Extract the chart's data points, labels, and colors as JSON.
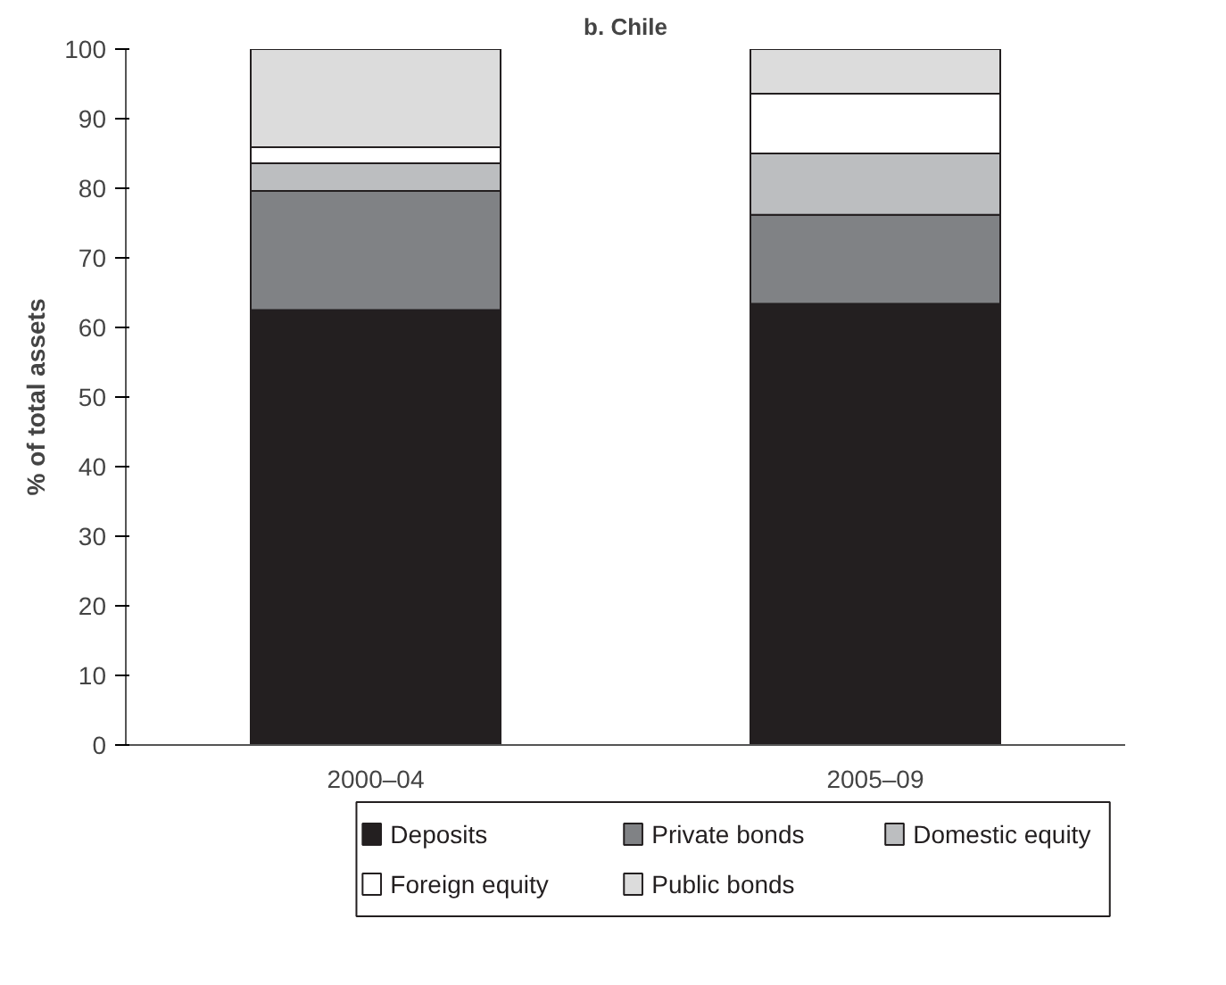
{
  "chart_data": {
    "type": "bar",
    "title": "b. Chile",
    "ylabel": "% of total assets",
    "stacked": true,
    "categories": [
      "2000–04",
      "2005–09"
    ],
    "series": [
      {
        "name": "Deposits",
        "color": "#231f20",
        "values": [
          62.5,
          63.4
        ]
      },
      {
        "name": "Private bonds",
        "color": "#808285",
        "values": [
          17.1,
          12.8
        ]
      },
      {
        "name": "Domestic equity",
        "color": "#bcbec0",
        "values": [
          4.0,
          8.8
        ]
      },
      {
        "name": "Foreign equity",
        "color": "#ffffff",
        "values": [
          2.3,
          8.6
        ]
      },
      {
        "name": "Public bonds",
        "color": "#dcdcdc",
        "values": [
          14.1,
          6.4
        ]
      }
    ],
    "ylim": [
      0,
      100
    ],
    "yticks": [
      0,
      10,
      20,
      30,
      40,
      50,
      60,
      70,
      80,
      90,
      100
    ],
    "grid": false,
    "legend": "bottom"
  }
}
